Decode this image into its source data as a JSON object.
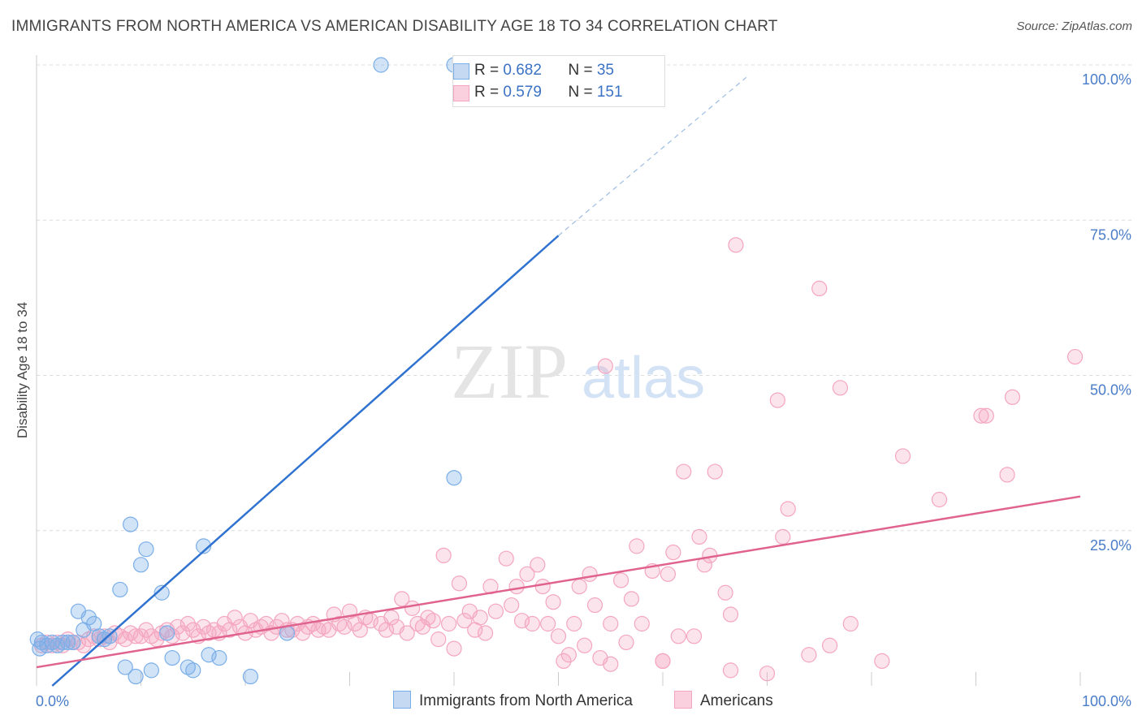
{
  "title": "IMMIGRANTS FROM NORTH AMERICA VS AMERICAN DISABILITY AGE 18 TO 34 CORRELATION CHART",
  "source": "Source: ZipAtlas.com",
  "watermark": {
    "zip": "ZIP",
    "atlas": "atlas"
  },
  "legend_top": {
    "rows": [
      {
        "r_label": "R = ",
        "r_value": "0.682",
        "n_label": "N = ",
        "n_value": "35"
      },
      {
        "r_label": "R = ",
        "r_value": "0.579",
        "n_label": "N = ",
        "n_value": "151"
      }
    ]
  },
  "chart_data": {
    "type": "scatter",
    "xlabel": "",
    "ylabel": "Disability Age 18 to 34",
    "xlim": [
      0,
      100
    ],
    "ylim": [
      0,
      100
    ],
    "x_tick_labels": [
      "0.0%",
      "100.0%"
    ],
    "y_ticks": [
      25,
      50,
      75,
      100
    ],
    "y_tick_labels": [
      "25.0%",
      "50.0%",
      "75.0%",
      "100.0%"
    ],
    "grid": true,
    "legend_position": "bottom",
    "series": [
      {
        "name": "Immigrants from North America",
        "color": "#7aaee8",
        "line_color": "#2f72d0",
        "R": 0.682,
        "N": 35,
        "trend": {
          "x0": 1.5,
          "y0": 0,
          "x1": 50,
          "y1": 72.5,
          "dash_x1": 68,
          "dash_y1": 98
        },
        "points": [
          [
            0.1,
            7.5
          ],
          [
            0.3,
            6.0
          ],
          [
            0.5,
            7.0
          ],
          [
            1.0,
            6.5
          ],
          [
            1.5,
            7.0
          ],
          [
            2.0,
            6.5
          ],
          [
            2.5,
            7.0
          ],
          [
            3.0,
            7.0
          ],
          [
            3.5,
            7.0
          ],
          [
            4.0,
            12.0
          ],
          [
            4.5,
            9.0
          ],
          [
            5.0,
            11.0
          ],
          [
            5.5,
            10.0
          ],
          [
            6.0,
            8.0
          ],
          [
            6.5,
            7.5
          ],
          [
            7.0,
            8.0
          ],
          [
            8.0,
            15.5
          ],
          [
            8.5,
            3.0
          ],
          [
            9.0,
            26.0
          ],
          [
            9.5,
            1.5
          ],
          [
            10.0,
            19.5
          ],
          [
            10.5,
            22.0
          ],
          [
            11.0,
            2.5
          ],
          [
            12.0,
            15.0
          ],
          [
            12.5,
            8.5
          ],
          [
            13.0,
            4.5
          ],
          [
            14.5,
            3.0
          ],
          [
            15.0,
            2.5
          ],
          [
            16.0,
            22.5
          ],
          [
            16.5,
            5.0
          ],
          [
            17.5,
            4.5
          ],
          [
            20.5,
            1.5
          ],
          [
            24.0,
            8.5
          ],
          [
            33.0,
            100.0
          ],
          [
            40.0,
            100.0
          ],
          [
            40.0,
            33.5
          ]
        ]
      },
      {
        "name": "Americans",
        "color": "#f4a6bf",
        "line_color": "#e0628f",
        "R": 0.579,
        "N": 151,
        "trend": {
          "x0": 0,
          "y0": 3.0,
          "x1": 100,
          "y1": 30.5
        },
        "points": [
          [
            0.5,
            6.5
          ],
          [
            1.0,
            7.0
          ],
          [
            1.5,
            6.5
          ],
          [
            2.0,
            7.0
          ],
          [
            2.5,
            6.5
          ],
          [
            3.0,
            7.5
          ],
          [
            3.5,
            7.0
          ],
          [
            4.0,
            7.0
          ],
          [
            4.5,
            6.5
          ],
          [
            5.0,
            7.5
          ],
          [
            5.5,
            8.0
          ],
          [
            6.0,
            7.5
          ],
          [
            6.5,
            8.0
          ],
          [
            7.0,
            7.0
          ],
          [
            7.5,
            8.5
          ],
          [
            8.0,
            8.0
          ],
          [
            8.5,
            7.5
          ],
          [
            9.0,
            8.5
          ],
          [
            9.5,
            8.0
          ],
          [
            10.0,
            8.0
          ],
          [
            10.5,
            9.0
          ],
          [
            11.0,
            8.0
          ],
          [
            11.5,
            7.5
          ],
          [
            12.0,
            8.5
          ],
          [
            12.5,
            9.0
          ],
          [
            13.0,
            8.0
          ],
          [
            13.5,
            9.5
          ],
          [
            14.0,
            8.5
          ],
          [
            14.5,
            10.0
          ],
          [
            15.0,
            9.0
          ],
          [
            15.5,
            8.0
          ],
          [
            16.0,
            9.5
          ],
          [
            16.5,
            8.5
          ],
          [
            17.0,
            9.0
          ],
          [
            17.5,
            8.5
          ],
          [
            18.0,
            10.0
          ],
          [
            18.5,
            9.0
          ],
          [
            19.0,
            11.0
          ],
          [
            19.5,
            9.5
          ],
          [
            20.0,
            8.5
          ],
          [
            20.5,
            10.5
          ],
          [
            21.0,
            9.0
          ],
          [
            21.5,
            9.5
          ],
          [
            22.0,
            10.0
          ],
          [
            22.5,
            8.5
          ],
          [
            23.0,
            9.5
          ],
          [
            23.5,
            10.5
          ],
          [
            24.0,
            9.0
          ],
          [
            24.5,
            9.0
          ],
          [
            25.0,
            10.0
          ],
          [
            25.5,
            8.5
          ],
          [
            26.0,
            9.5
          ],
          [
            26.5,
            10.0
          ],
          [
            27.0,
            9.0
          ],
          [
            27.5,
            9.5
          ],
          [
            28.0,
            9.0
          ],
          [
            28.5,
            11.5
          ],
          [
            29.0,
            10.0
          ],
          [
            29.5,
            9.5
          ],
          [
            30.0,
            12.0
          ],
          [
            30.5,
            10.0
          ],
          [
            31.0,
            9.0
          ],
          [
            31.5,
            11.0
          ],
          [
            32.0,
            10.5
          ],
          [
            33.0,
            10.0
          ],
          [
            33.5,
            9.0
          ],
          [
            34.0,
            11.0
          ],
          [
            34.5,
            9.5
          ],
          [
            35.0,
            14.0
          ],
          [
            35.5,
            8.5
          ],
          [
            36.0,
            12.5
          ],
          [
            36.5,
            10.0
          ],
          [
            37.0,
            9.5
          ],
          [
            37.5,
            11.0
          ],
          [
            38.0,
            10.5
          ],
          [
            38.5,
            7.5
          ],
          [
            39.0,
            21.0
          ],
          [
            39.5,
            10.0
          ],
          [
            40.0,
            6.0
          ],
          [
            40.5,
            16.5
          ],
          [
            41.0,
            10.5
          ],
          [
            41.5,
            12.0
          ],
          [
            42.0,
            9.0
          ],
          [
            42.5,
            11.0
          ],
          [
            43.0,
            8.5
          ],
          [
            43.5,
            16.0
          ],
          [
            44.0,
            12.0
          ],
          [
            45.0,
            20.5
          ],
          [
            45.5,
            13.0
          ],
          [
            46.0,
            16.0
          ],
          [
            46.5,
            10.5
          ],
          [
            47.0,
            18.0
          ],
          [
            47.5,
            10.0
          ],
          [
            48.0,
            19.5
          ],
          [
            48.5,
            16.0
          ],
          [
            49.0,
            10.0
          ],
          [
            49.5,
            13.5
          ],
          [
            50.0,
            8.0
          ],
          [
            50.5,
            4.0
          ],
          [
            51.0,
            5.0
          ],
          [
            51.5,
            10.0
          ],
          [
            52.0,
            16.0
          ],
          [
            52.5,
            6.5
          ],
          [
            53.0,
            18.0
          ],
          [
            53.5,
            13.0
          ],
          [
            54.0,
            4.5
          ],
          [
            54.5,
            51.5
          ],
          [
            55.0,
            10.0
          ],
          [
            56.0,
            17.0
          ],
          [
            56.5,
            7.0
          ],
          [
            57.0,
            14.0
          ],
          [
            57.5,
            22.5
          ],
          [
            58.0,
            10.0
          ],
          [
            59.0,
            18.5
          ],
          [
            60.0,
            4.0
          ],
          [
            60.5,
            18.0
          ],
          [
            61.0,
            21.5
          ],
          [
            61.5,
            8.0
          ],
          [
            62.0,
            34.5
          ],
          [
            63.0,
            8.0
          ],
          [
            63.5,
            24.0
          ],
          [
            64.0,
            19.5
          ],
          [
            64.5,
            21.0
          ],
          [
            65.0,
            34.5
          ],
          [
            66.0,
            15.0
          ],
          [
            66.5,
            11.5
          ],
          [
            67.0,
            71.0
          ],
          [
            70.0,
            2.0
          ],
          [
            71.0,
            46.0
          ],
          [
            71.5,
            24.0
          ],
          [
            72.0,
            28.5
          ],
          [
            74.0,
            5.0
          ],
          [
            75.0,
            64.0
          ],
          [
            76.0,
            6.5
          ],
          [
            77.0,
            48.0
          ],
          [
            78.0,
            10.0
          ],
          [
            81.0,
            4.0
          ],
          [
            83.0,
            37.0
          ],
          [
            86.5,
            30.0
          ],
          [
            91.0,
            43.5
          ],
          [
            93.0,
            34.0
          ],
          [
            93.5,
            46.5
          ],
          [
            99.5,
            53.0
          ],
          [
            90.5,
            43.5
          ],
          [
            66.5,
            2.5
          ],
          [
            55.0,
            3.5
          ],
          [
            60.0,
            4.0
          ]
        ]
      }
    ]
  }
}
